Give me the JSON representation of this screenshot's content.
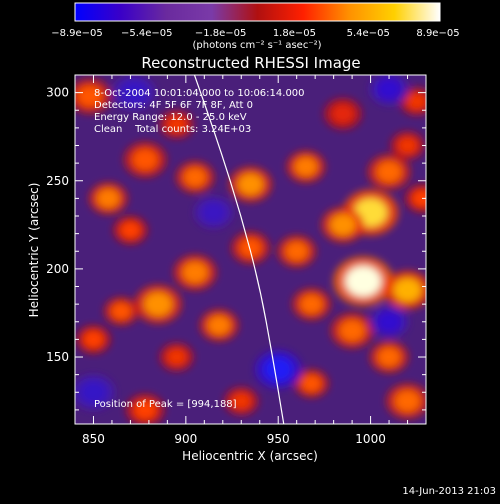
{
  "chart_data": {
    "type": "heatmap",
    "title": "Reconstructed RHESSI Image",
    "xlabel": "Heliocentric X (arcsec)",
    "ylabel": "Heliocentric Y (arcsec)",
    "xlim": [
      840,
      1030
    ],
    "ylim": [
      112,
      310
    ],
    "xticks": [
      850,
      900,
      950,
      1000
    ],
    "yticks": [
      150,
      200,
      250,
      300
    ],
    "x_tick_labels": [
      "850",
      "900",
      "950",
      "1000"
    ],
    "y_tick_labels": [
      "150",
      "200",
      "250",
      "300"
    ],
    "colorbar": {
      "range": [
        -8.9e-05,
        8.9e-05
      ],
      "tick_labels": [
        "−8.9e−05",
        "−5.4e−05",
        "−1.8e−05",
        "1.8e−05",
        "5.4e−05",
        "8.9e−05"
      ],
      "tick_values": [
        -8.9e-05,
        -5.4e-05,
        -1.8e-05,
        1.8e-05,
        5.4e-05,
        8.9e-05
      ],
      "units_label": "(photons cm⁻² s⁻¹ asec⁻²)",
      "colors": [
        "#0000ff",
        "#3a00c8",
        "#6a2a9e",
        "#7a3aa8",
        "#b01010",
        "#ff2000",
        "#ff9000",
        "#ffd000",
        "#ffffff"
      ]
    },
    "limb_curve": {
      "description": "solar limb",
      "points": [
        [
          904,
          312
        ],
        [
          918,
          270
        ],
        [
          930,
          230
        ],
        [
          940,
          190
        ],
        [
          947,
          150
        ],
        [
          953,
          112
        ]
      ]
    },
    "peak": [
      994,
      188
    ],
    "blobs": [
      {
        "x": 848,
        "y": 298,
        "a": 0.45,
        "r": 10
      },
      {
        "x": 895,
        "y": 282,
        "a": 0.35,
        "r": 8
      },
      {
        "x": 985,
        "y": 288,
        "a": 0.3,
        "r": 9
      },
      {
        "x": 1025,
        "y": 295,
        "a": 0.35,
        "r": 8
      },
      {
        "x": 878,
        "y": 262,
        "a": 0.45,
        "r": 10
      },
      {
        "x": 905,
        "y": 252,
        "a": 0.5,
        "r": 9
      },
      {
        "x": 935,
        "y": 248,
        "a": 0.6,
        "r": 10
      },
      {
        "x": 965,
        "y": 258,
        "a": 0.55,
        "r": 9
      },
      {
        "x": 1010,
        "y": 255,
        "a": 0.5,
        "r": 10
      },
      {
        "x": 1020,
        "y": 270,
        "a": 0.35,
        "r": 8
      },
      {
        "x": 858,
        "y": 240,
        "a": 0.55,
        "r": 9
      },
      {
        "x": 1000,
        "y": 232,
        "a": 0.85,
        "r": 13
      },
      {
        "x": 985,
        "y": 225,
        "a": 0.6,
        "r": 10
      },
      {
        "x": 1028,
        "y": 240,
        "a": 0.4,
        "r": 8
      },
      {
        "x": 870,
        "y": 222,
        "a": 0.4,
        "r": 8
      },
      {
        "x": 935,
        "y": 212,
        "a": 0.45,
        "r": 9
      },
      {
        "x": 960,
        "y": 210,
        "a": 0.5,
        "r": 9
      },
      {
        "x": 905,
        "y": 198,
        "a": 0.55,
        "r": 10
      },
      {
        "x": 996,
        "y": 193,
        "a": 1.0,
        "r": 14
      },
      {
        "x": 1020,
        "y": 188,
        "a": 0.7,
        "r": 11
      },
      {
        "x": 885,
        "y": 180,
        "a": 0.6,
        "r": 11
      },
      {
        "x": 865,
        "y": 176,
        "a": 0.45,
        "r": 8
      },
      {
        "x": 968,
        "y": 180,
        "a": 0.5,
        "r": 9
      },
      {
        "x": 918,
        "y": 168,
        "a": 0.55,
        "r": 9
      },
      {
        "x": 850,
        "y": 160,
        "a": 0.4,
        "r": 8
      },
      {
        "x": 895,
        "y": 150,
        "a": 0.35,
        "r": 8
      },
      {
        "x": 990,
        "y": 165,
        "a": 0.5,
        "r": 10
      },
      {
        "x": 1010,
        "y": 150,
        "a": 0.5,
        "r": 9
      },
      {
        "x": 968,
        "y": 135,
        "a": 0.45,
        "r": 8
      },
      {
        "x": 878,
        "y": 120,
        "a": 0.4,
        "r": 9
      },
      {
        "x": 930,
        "y": 125,
        "a": 0.35,
        "r": 8
      },
      {
        "x": 1020,
        "y": 125,
        "a": 0.5,
        "r": 10
      },
      {
        "x": 950,
        "y": 143,
        "a": -0.9,
        "r": 11
      },
      {
        "x": 872,
        "y": 300,
        "a": -0.4,
        "r": 10
      },
      {
        "x": 1010,
        "y": 302,
        "a": -0.5,
        "r": 9
      },
      {
        "x": 1010,
        "y": 170,
        "a": -0.5,
        "r": 9
      },
      {
        "x": 850,
        "y": 130,
        "a": -0.4,
        "r": 10
      },
      {
        "x": 915,
        "y": 232,
        "a": -0.35,
        "r": 9
      }
    ]
  },
  "annotations": {
    "line1": "8-Oct-2004 10:01:04.000 to 10:06:14.000",
    "line2": "Detectors: 4F 5F 6F 7F 8F, Att 0",
    "line3": "Energy Range: 12.0 - 25.0 keV",
    "line4": "Clean    Total counts: 3.24E+03",
    "peak_text": "Position of Peak = [994,188]"
  },
  "footer": {
    "timestamp": "14-Jun-2013 21:03"
  }
}
